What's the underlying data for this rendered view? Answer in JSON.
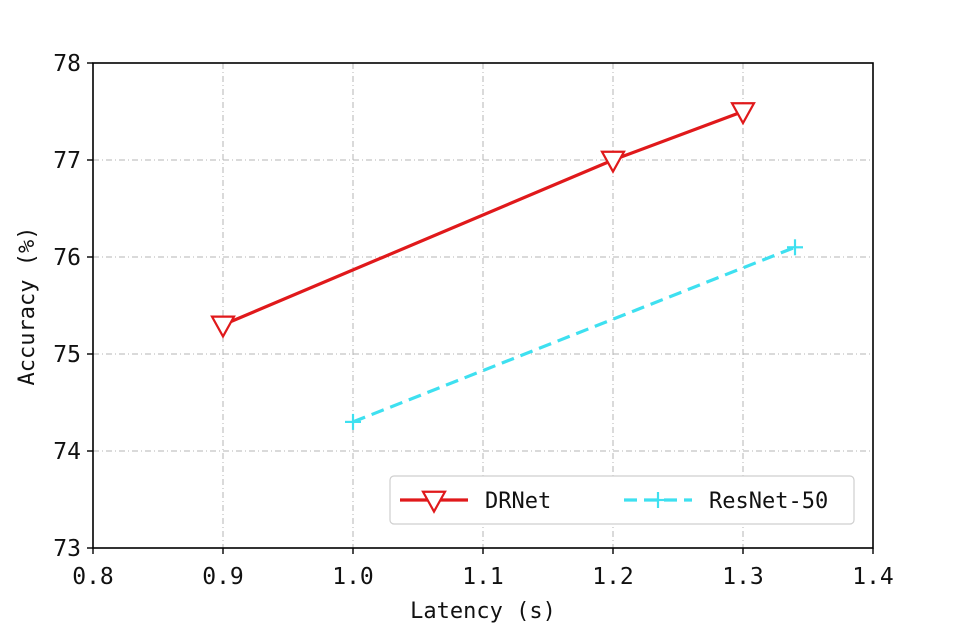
{
  "chart_data": {
    "type": "line",
    "title": "",
    "xlabel": "Latency (s)",
    "ylabel": "Accuracy (%)",
    "xlim": [
      0.8,
      1.4
    ],
    "ylim": [
      73,
      78
    ],
    "xticks": [
      0.8,
      0.9,
      1.0,
      1.1,
      1.2,
      1.3,
      1.4
    ],
    "xtick_labels": [
      "0.8",
      "0.9",
      "1.0",
      "1.1",
      "1.2",
      "1.3",
      "1.4"
    ],
    "yticks": [
      73,
      74,
      75,
      76,
      77,
      78
    ],
    "ytick_labels": [
      "73",
      "74",
      "75",
      "76",
      "77",
      "78"
    ],
    "grid": true,
    "legend_position": "bottom-right",
    "series": [
      {
        "name": "DRNet",
        "color": "#e0191b",
        "line_style": "solid",
        "marker": "triangle-down",
        "x": [
          0.9,
          1.2,
          1.3
        ],
        "y": [
          75.3,
          77.0,
          77.5
        ]
      },
      {
        "name": "ResNet-50",
        "color": "#3ee0f0",
        "line_style": "dashed",
        "marker": "plus",
        "x": [
          1.0,
          1.34
        ],
        "y": [
          74.3,
          76.1
        ]
      }
    ]
  }
}
